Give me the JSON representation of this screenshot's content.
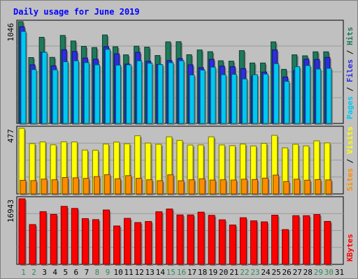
{
  "chart_data": {
    "type": "bar",
    "title": "Daily usage for June 2019",
    "categories": [
      "1",
      "2",
      "3",
      "4",
      "5",
      "6",
      "7",
      "8",
      "9",
      "10",
      "11",
      "12",
      "13",
      "14",
      "15",
      "16",
      "17",
      "18",
      "19",
      "20",
      "21",
      "22",
      "23",
      "24",
      "25",
      "26",
      "27",
      "28",
      "29",
      "30",
      "31"
    ],
    "weekend_days": [
      1,
      2,
      8,
      9,
      15,
      16,
      22,
      23,
      29,
      30
    ],
    "colors": {
      "title": "#0000ff",
      "weekday_label": "#000000",
      "weekend_label": "#2e8b57",
      "hits": "#1e7a5c",
      "files": "#2d2de0",
      "pages": "#00c8f0",
      "visits": "#ffff00",
      "sites": "#ff8c00",
      "kbytes": "#ff0000"
    },
    "panels": {
      "hits_files_pages": {
        "max_label": "1046",
        "ylim": [
          0,
          1046
        ],
        "legend": [
          {
            "name": "Pages",
            "color": "#00c8f0"
          },
          {
            "name": "Files",
            "color": "#2d2de0"
          },
          {
            "name": "Hits",
            "color": "#1e7a5c"
          }
        ],
        "series": [
          {
            "name": "Hits",
            "values": [
              1046,
              677,
              885,
              679,
              904,
              847,
              792,
              780,
              909,
              788,
              705,
              794,
              784,
              698,
              838,
              840,
              706,
              755,
              737,
              644,
              640,
              748,
              621,
              621,
              838,
              556,
              705,
              695,
              736,
              736,
              0
            ]
          },
          {
            "name": "Files",
            "values": [
              994,
              602,
              732,
              592,
              757,
              739,
              672,
              660,
              789,
              715,
              610,
              731,
              639,
              606,
              647,
              667,
              602,
              573,
              659,
              589,
              583,
              564,
              486,
              528,
              755,
              477,
              543,
              660,
              658,
              679,
              0
            ]
          },
          {
            "name": "Pages",
            "values": [
              945,
              553,
              731,
              551,
              634,
              644,
              625,
              602,
              761,
              599,
              602,
              643,
              618,
              604,
              624,
              644,
              498,
              548,
              578,
              501,
              505,
              457,
              501,
              507,
              614,
              432,
              583,
              595,
              559,
              566,
              0
            ]
          }
        ]
      },
      "visits_sites": {
        "max_label": "477",
        "ylim": [
          0,
          477
        ],
        "legend": [
          {
            "name": "Sites",
            "color": "#ff8c00"
          },
          {
            "name": "Visits",
            "color": "#ffff00"
          }
        ],
        "series": [
          {
            "name": "Visits",
            "values": [
              477,
              366,
              378,
              357,
              379,
              378,
              319,
              318,
              363,
              377,
              365,
              423,
              370,
              361,
              415,
              389,
              355,
              356,
              415,
              356,
              351,
              363,
              349,
              368,
              426,
              335,
              361,
              349,
              386,
              371,
              0
            ]
          },
          {
            "name": "Sites",
            "values": [
              99,
              97,
              108,
              103,
              119,
              117,
              113,
              126,
              140,
              110,
              133,
              114,
              103,
              96,
              139,
              96,
              103,
              110,
              101,
              103,
              101,
              107,
              105,
              115,
              137,
              90,
              107,
              100,
              104,
              102,
              0
            ]
          }
        ]
      },
      "kbytes": {
        "max_label": "16943",
        "ylim": [
          0,
          16943
        ],
        "legend": [
          {
            "name": "KBytes",
            "color": "#ff0000"
          }
        ],
        "series": [
          {
            "name": "KBytes",
            "values": [
              16943,
              10282,
              13625,
              12913,
              14996,
              14454,
              11816,
              11556,
              14052,
              9918,
              11886,
              10804,
              11074,
              13595,
              14300,
              12772,
              12772,
              13489,
              12664,
              11515,
              10166,
              12054,
              11249,
              10982,
              12710,
              8986,
              12578,
              12578,
              12878,
              11095,
              0
            ]
          }
        ]
      }
    }
  }
}
